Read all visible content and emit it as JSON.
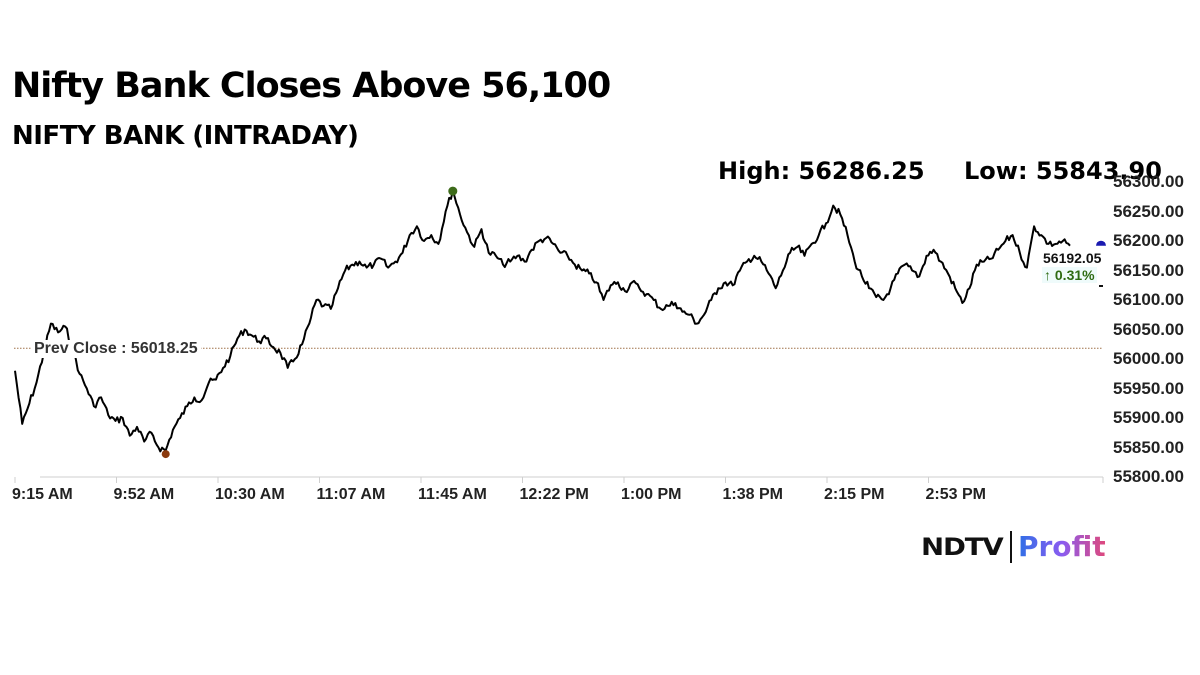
{
  "header": {
    "title": "Nifty Bank Closes Above 56,100",
    "subtitle": "NIFTY BANK (INTRADAY)"
  },
  "stats": {
    "high_label": "High: 56286.25",
    "low_label": "Low: 55843.90",
    "high": 56286.25,
    "low": 55843.9
  },
  "annotations": {
    "prev_close_label": "Prev Close : 56018.25",
    "prev_close": 56018.25,
    "last_price": "56192.05",
    "change": "↑ 0.31%"
  },
  "colors": {
    "line": "#000000",
    "prev_close_line": "#a0724a",
    "high_marker": "#3d6b1a",
    "low_marker": "#8b3a0e",
    "last_marker": "#1a1ab0",
    "change_text": "#2e6b12"
  },
  "brand": {
    "ndtv": "NDTV",
    "profit": "Profit"
  },
  "chart_data": {
    "type": "line",
    "title": "NIFTY BANK (INTRADAY)",
    "xlabel": "",
    "ylabel": "",
    "ylim": [
      55800,
      56300
    ],
    "grid": false,
    "legend": "none",
    "y_ticks": [
      "56300.00",
      "56250.00",
      "56200.00",
      "56150.00",
      "56100.00",
      "56050.00",
      "56000.00",
      "55950.00",
      "55900.00",
      "55850.00",
      "55800.00"
    ],
    "x_ticks": [
      "9:15 AM",
      "9:52 AM",
      "10:30 AM",
      "11:07 AM",
      "11:45 AM",
      "12:22 PM",
      "1:00 PM",
      "1:38 PM",
      "2:15 PM",
      "2:53 PM"
    ],
    "series": [
      {
        "name": "NIFTY BANK",
        "values": [
          55980,
          55890,
          55925,
          55960,
          56010,
          56060,
          56045,
          56055,
          56020,
          55975,
          55950,
          55920,
          55935,
          55905,
          55895,
          55900,
          55870,
          55885,
          55860,
          55875,
          55850,
          55845,
          55880,
          55900,
          55920,
          55935,
          55930,
          55960,
          55965,
          55985,
          56005,
          56035,
          56050,
          56040,
          56030,
          56035,
          56020,
          56010,
          55985,
          56000,
          56025,
          56060,
          56100,
          56090,
          56085,
          56120,
          56150,
          56160,
          56165,
          56155,
          56160,
          56170,
          56155,
          56165,
          56180,
          56210,
          56225,
          56200,
          56210,
          56195,
          56250,
          56286,
          56245,
          56215,
          56190,
          56220,
          56180,
          56175,
          56160,
          56165,
          56175,
          56165,
          56185,
          56200,
          56205,
          56195,
          56180,
          56175,
          56160,
          56150,
          56145,
          56130,
          56100,
          56125,
          56130,
          56115,
          56130,
          56120,
          56110,
          56100,
          56085,
          56090,
          56095,
          56080,
          56075,
          56060,
          56075,
          56100,
          56120,
          56130,
          56125,
          56150,
          56165,
          56175,
          56165,
          56145,
          56120,
          56150,
          56180,
          56190,
          56175,
          56195,
          56210,
          56230,
          56260,
          56245,
          56210,
          56165,
          56140,
          56120,
          56105,
          56100,
          56120,
          56145,
          56160,
          56150,
          56140,
          56175,
          56185,
          56165,
          56145,
          56120,
          56095,
          56120,
          56160,
          56165,
          56170,
          56185,
          56200,
          56210,
          56180,
          56155,
          56225,
          56210,
          56195,
          56195,
          56200,
          56192
        ]
      }
    ],
    "markers": {
      "high": {
        "value": 56286.25,
        "time_index": 61
      },
      "low": {
        "value": 55843.9,
        "time_index": 21
      },
      "prev_close": 56018.25,
      "last": 56192.05
    }
  }
}
